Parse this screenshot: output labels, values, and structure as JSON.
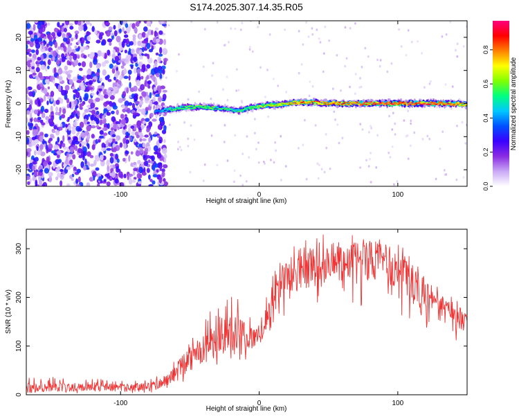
{
  "chart_data": [
    {
      "type": "heatmap",
      "title": "S174.2025.307.14.35.R05",
      "xlabel": "Height of straight line (km)",
      "ylabel": "Frequency (Hz)",
      "xlim": [
        -168,
        150
      ],
      "ylim": [
        -25,
        25
      ],
      "xticks": [
        -100,
        0,
        100
      ],
      "yticks": [
        -20,
        -10,
        0,
        10,
        20
      ],
      "colorbar": {
        "label": "Normalized spectral amplitude",
        "range": [
          0,
          0.97
        ],
        "ticks": [
          0,
          0.2,
          0.4,
          0.6,
          0.8
        ],
        "colors": [
          "#ffffff",
          "#c9a8f5",
          "#8a2be2",
          "#3a00ff",
          "#0050ff",
          "#00c8ff",
          "#00ff80",
          "#80ff00",
          "#ffff00",
          "#ff8000",
          "#ff0000",
          "#ff0080"
        ]
      },
      "noise_region": {
        "x": [
          -168,
          -72
        ],
        "y": [
          -25,
          25
        ],
        "amplitude": [
          0.05,
          0.35
        ]
      },
      "ridge": {
        "x": [
          -75,
          -65,
          -55,
          -45,
          -35,
          -25,
          -15,
          -5,
          5,
          15,
          25,
          35,
          45,
          55,
          65,
          75,
          85,
          95,
          105,
          115,
          125,
          135,
          145,
          150
        ],
        "frequency": [
          -2.5,
          -1.8,
          -1.2,
          -1.0,
          -1.2,
          -1.5,
          -2.2,
          -1.2,
          -0.5,
          -0.3,
          0.3,
          0.4,
          0.2,
          0.1,
          0.0,
          0.0,
          0.1,
          0.0,
          0.0,
          0.1,
          0.0,
          0.0,
          -0.2,
          -0.3
        ],
        "amplitude": [
          0.4,
          0.55,
          0.6,
          0.62,
          0.6,
          0.58,
          0.55,
          0.62,
          0.68,
          0.72,
          0.8,
          0.82,
          0.84,
          0.86,
          0.86,
          0.88,
          0.88,
          0.9,
          0.92,
          0.92,
          0.9,
          0.86,
          0.82,
          0.8
        ]
      }
    },
    {
      "type": "line",
      "xlabel": "Height of straight line (km)",
      "ylabel": "SNR (10 * v/v)",
      "xlim": [
        -168,
        150
      ],
      "ylim": [
        0,
        340
      ],
      "xticks": [
        -100,
        0,
        100
      ],
      "yticks": [
        0,
        100,
        200,
        300
      ],
      "series": [
        {
          "name": "SNR",
          "color": "#f03232",
          "x": [
            -168,
            -140,
            -110,
            -90,
            -75,
            -65,
            -55,
            -45,
            -40,
            -30,
            -20,
            -10,
            0,
            5,
            10,
            15,
            20,
            30,
            40,
            50,
            60,
            70,
            80,
            90,
            100,
            110,
            120,
            130,
            140,
            150
          ],
          "upper": [
            40,
            35,
            33,
            30,
            35,
            60,
            110,
            150,
            160,
            185,
            220,
            180,
            150,
            230,
            260,
            280,
            300,
            315,
            330,
            330,
            330,
            330,
            330,
            325,
            310,
            290,
            250,
            220,
            200,
            180
          ],
          "mean": [
            15,
            15,
            15,
            15,
            18,
            30,
            60,
            90,
            95,
            110,
            130,
            120,
            115,
            170,
            200,
            225,
            240,
            255,
            265,
            270,
            275,
            275,
            275,
            270,
            255,
            235,
            205,
            180,
            165,
            150
          ],
          "lower": [
            3,
            3,
            3,
            3,
            5,
            10,
            20,
            40,
            45,
            60,
            75,
            70,
            70,
            100,
            130,
            150,
            160,
            170,
            175,
            180,
            180,
            180,
            180,
            175,
            165,
            150,
            130,
            120,
            110,
            100
          ]
        }
      ]
    }
  ]
}
